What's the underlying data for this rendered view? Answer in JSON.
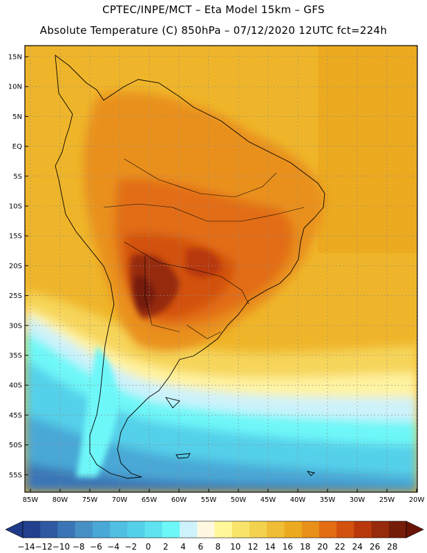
{
  "header": {
    "line1": "CPTEC/INPE/MCT –  Eta Model 15km – GFS",
    "line2": "Absolute Temperature (C) 850hPa – 07/12/2020 12UTC fct=224h"
  },
  "map": {
    "lat_labels": [
      "15N",
      "10N",
      "5N",
      "EQ",
      "5S",
      "10S",
      "15S",
      "20S",
      "25S",
      "30S",
      "35S",
      "40S",
      "45S",
      "50S",
      "55S"
    ],
    "lon_labels": [
      "85W",
      "80W",
      "75W",
      "70W",
      "65W",
      "60W",
      "55W",
      "50W",
      "45W",
      "40W",
      "35W",
      "30W",
      "25W",
      "20W"
    ]
  },
  "colorbar": {
    "labels": [
      "-14",
      "-12",
      "-10",
      "-8",
      "-6",
      "-4",
      "-2",
      "0",
      "2",
      "4",
      "6",
      "8",
      "10",
      "12",
      "14",
      "16",
      "18",
      "20",
      "22",
      "24",
      "26",
      "28"
    ],
    "colors": [
      "#22408e",
      "#2f5aa2",
      "#3a76b6",
      "#4790c6",
      "#4aa8d6",
      "#50bfe2",
      "#55d0ea",
      "#5fe3f1",
      "#6ef7f8",
      "#cdf2fb",
      "#fff8e0",
      "#fff79a",
      "#f8e46a",
      "#f3d24f",
      "#efbd36",
      "#ecaa20",
      "#e9901a",
      "#e26d12",
      "#d2510e",
      "#b8380c",
      "#962a0b",
      "#761d0a"
    ],
    "under_color": "#1f3a88",
    "over_color": "#6a1405"
  }
}
